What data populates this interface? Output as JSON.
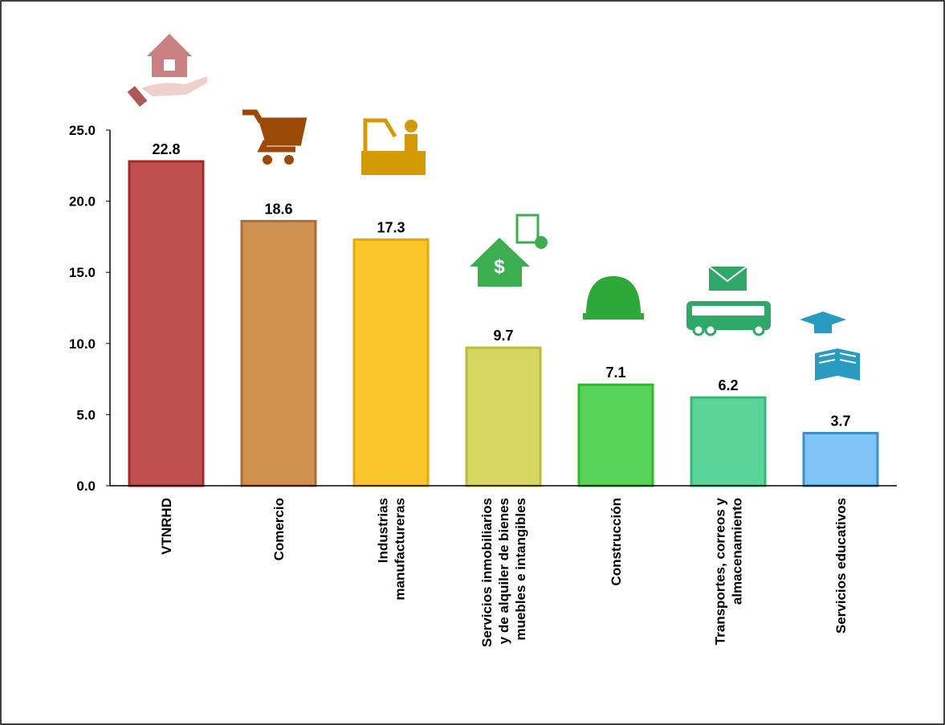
{
  "chart_data": {
    "type": "bar",
    "categories": [
      "VTNRHD",
      "Comercio",
      "Industrias manufactureras",
      "Servicios inmobiliarios y de alquiler de bienes muebles e intangibles",
      "Construcción",
      "Transportes, correos y almacenamiento",
      "Servicios educativos"
    ],
    "values": [
      22.8,
      18.6,
      17.3,
      9.7,
      7.1,
      6.2,
      3.7
    ],
    "colors": [
      "#c0504d",
      "#d09050",
      "#fcc72c",
      "#d4d862",
      "#57d35a",
      "#5ad49a",
      "#7ec4f6"
    ],
    "edge_colors": [
      "#a8282a",
      "#a8713c",
      "#e5a812",
      "#b9bd3c",
      "#2fb830",
      "#36b87a",
      "#3f8ccc"
    ],
    "ylim": [
      0,
      25
    ],
    "yticks": [
      {
        "value": 0,
        "label": "0.0"
      },
      {
        "value": 5,
        "label": "5.0"
      },
      {
        "value": 10,
        "label": "10.0"
      },
      {
        "value": 15,
        "label": "15.0"
      },
      {
        "value": 20,
        "label": "20.0"
      },
      {
        "value": 25,
        "label": "25.0"
      }
    ],
    "grid": false
  }
}
